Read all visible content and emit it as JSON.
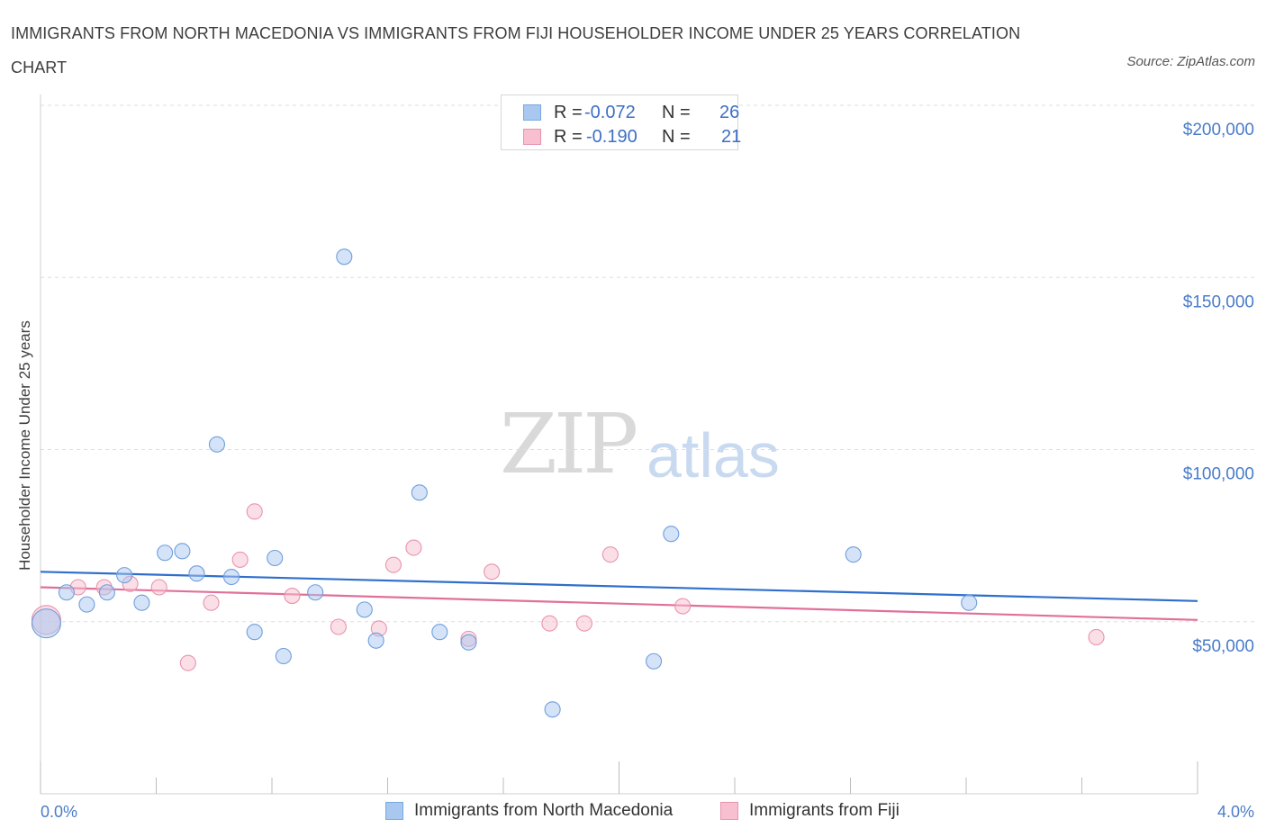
{
  "header": {
    "title": "IMMIGRANTS FROM NORTH MACEDONIA VS IMMIGRANTS FROM FIJI HOUSEHOLDER INCOME UNDER 25 YEARS CORRELATION CHART",
    "source": "Source: ZipAtlas.com"
  },
  "watermark": {
    "zip": "ZIP",
    "atlas": "atlas"
  },
  "legend_top": {
    "rows": [
      {
        "r_label": "R =",
        "r_value": "-0.072",
        "n_label": "N =",
        "n_value": "26",
        "color": "#a9c8f0",
        "border": "#7aa6e0"
      },
      {
        "r_label": "R =",
        "r_value": "-0.190",
        "n_label": "N =",
        "n_value": "21",
        "color": "#f7bfd0",
        "border": "#e993ad"
      }
    ]
  },
  "bottom_legend": {
    "items": [
      {
        "label": "Immigrants from North Macedonia",
        "color": "#a9c8f0",
        "border": "#7aa6e0"
      },
      {
        "label": "Immigrants from Fiji",
        "color": "#f7bfd0",
        "border": "#e993ad"
      }
    ]
  },
  "chart_data": {
    "type": "scatter",
    "title": "IMMIGRANTS FROM NORTH MACEDONIA VS IMMIGRANTS FROM FIJI HOUSEHOLDER INCOME UNDER 25 YEARS CORRELATION CHART",
    "xlabel": "",
    "ylabel": "Householder Income Under 25 years",
    "xlim": [
      0.0,
      4.0
    ],
    "ylim": [
      0,
      200000
    ],
    "x_tick_labels": [
      {
        "value": 0.0,
        "label": "0.0%"
      },
      {
        "value": 4.0,
        "label": "4.0%"
      }
    ],
    "y_ticks": [
      {
        "value": 50000,
        "label": "$50,000"
      },
      {
        "value": 100000,
        "label": "$100,000"
      },
      {
        "value": 150000,
        "label": "$150,000"
      },
      {
        "value": 200000,
        "label": "$200,000"
      }
    ],
    "grid": true,
    "series": [
      {
        "name": "Immigrants from North Macedonia",
        "color": "#a9c8f0",
        "stroke": "#6f9fdc",
        "line_color": "#2f6fcc",
        "trend": {
          "x0": 0.0,
          "y0": 64500,
          "x1": 4.0,
          "y1": 56000
        },
        "points": [
          {
            "x": 0.02,
            "y": 49500,
            "big": true
          },
          {
            "x": 0.09,
            "y": 58500
          },
          {
            "x": 0.16,
            "y": 55000
          },
          {
            "x": 0.23,
            "y": 58500
          },
          {
            "x": 0.29,
            "y": 63500
          },
          {
            "x": 0.35,
            "y": 55500
          },
          {
            "x": 0.43,
            "y": 70000
          },
          {
            "x": 0.49,
            "y": 70500
          },
          {
            "x": 0.54,
            "y": 64000
          },
          {
            "x": 0.61,
            "y": 101500
          },
          {
            "x": 0.66,
            "y": 63000
          },
          {
            "x": 0.74,
            "y": 47000
          },
          {
            "x": 0.81,
            "y": 68500
          },
          {
            "x": 0.84,
            "y": 40000
          },
          {
            "x": 0.95,
            "y": 58500
          },
          {
            "x": 1.05,
            "y": 156000
          },
          {
            "x": 1.12,
            "y": 53500
          },
          {
            "x": 1.16,
            "y": 44500
          },
          {
            "x": 1.31,
            "y": 87500
          },
          {
            "x": 1.38,
            "y": 47000
          },
          {
            "x": 1.48,
            "y": 44000
          },
          {
            "x": 1.77,
            "y": 24500
          },
          {
            "x": 2.12,
            "y": 38500
          },
          {
            "x": 2.18,
            "y": 75500
          },
          {
            "x": 2.81,
            "y": 69500
          },
          {
            "x": 3.21,
            "y": 55500
          }
        ]
      },
      {
        "name": "Immigrants from Fiji",
        "color": "#f7bfd0",
        "stroke": "#e993ad",
        "line_color": "#e0709a",
        "trend": {
          "x0": 0.0,
          "y0": 60000,
          "x1": 4.0,
          "y1": 50500
        },
        "points": [
          {
            "x": 0.02,
            "y": 50500,
            "big": true
          },
          {
            "x": 0.13,
            "y": 60000
          },
          {
            "x": 0.22,
            "y": 60000
          },
          {
            "x": 0.31,
            "y": 61000
          },
          {
            "x": 0.41,
            "y": 60000
          },
          {
            "x": 0.51,
            "y": 38000
          },
          {
            "x": 0.59,
            "y": 55500
          },
          {
            "x": 0.69,
            "y": 68000
          },
          {
            "x": 0.74,
            "y": 82000
          },
          {
            "x": 0.87,
            "y": 57500
          },
          {
            "x": 1.03,
            "y": 48500
          },
          {
            "x": 1.17,
            "y": 48000
          },
          {
            "x": 1.22,
            "y": 66500
          },
          {
            "x": 1.29,
            "y": 71500
          },
          {
            "x": 1.48,
            "y": 45000
          },
          {
            "x": 1.56,
            "y": 64500
          },
          {
            "x": 1.76,
            "y": 49500
          },
          {
            "x": 1.88,
            "y": 49500
          },
          {
            "x": 1.97,
            "y": 69500
          },
          {
            "x": 2.22,
            "y": 54500
          },
          {
            "x": 3.65,
            "y": 45500
          }
        ]
      }
    ]
  }
}
